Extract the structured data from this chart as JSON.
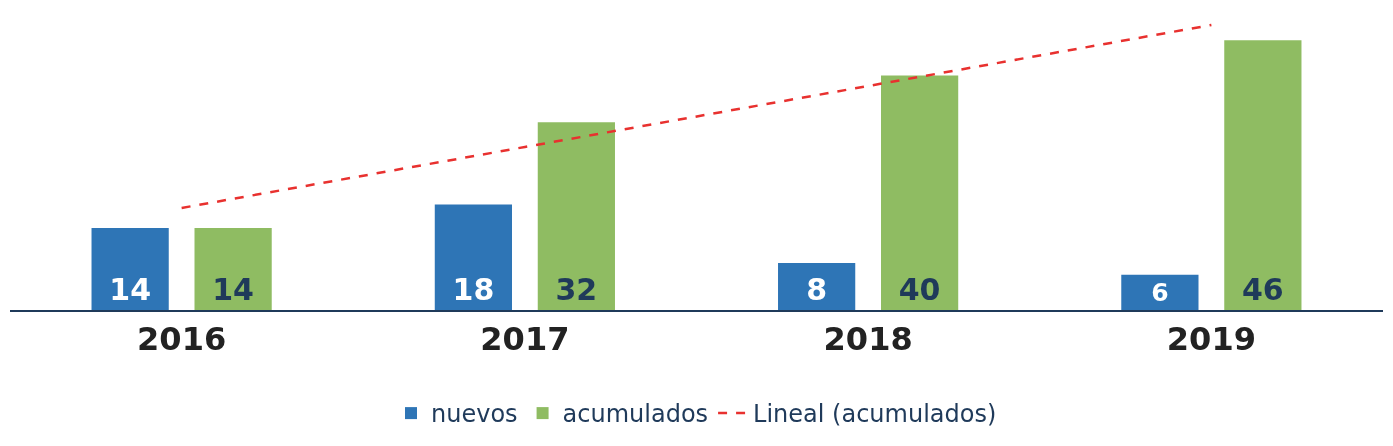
{
  "chart_data": {
    "type": "bar",
    "categories": [
      "2016",
      "2017",
      "2018",
      "2019"
    ],
    "series": [
      {
        "name": "nuevos",
        "color": "#2e75b6",
        "values": [
          14,
          18,
          8,
          6
        ],
        "value_labels": [
          "14",
          "18",
          "8",
          "6"
        ]
      },
      {
        "name": "acumulados",
        "color": "#8fbc62",
        "values": [
          14,
          32,
          40,
          46
        ],
        "value_labels": [
          "14",
          "32",
          "40",
          "46"
        ]
      },
      {
        "name": "Lineal (acumulados)",
        "type": "line",
        "color": "#e8312f",
        "line_style": "dashed",
        "marker": "none",
        "values": [
          17.4,
          27.8,
          38.2,
          48.6
        ]
      }
    ],
    "grid": false,
    "legend": "bottom",
    "tick_labels": "x"
  }
}
